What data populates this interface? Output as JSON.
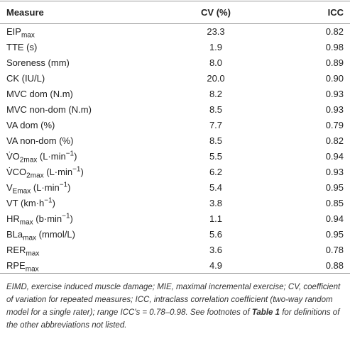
{
  "table": {
    "header": [
      "Measure",
      "CV (%)",
      "ICC"
    ],
    "rows": [
      {
        "measure": [
          {
            "text": "EIP"
          },
          {
            "sub": "max"
          }
        ],
        "cv": "23.3",
        "icc": "0.82"
      },
      {
        "measure": [
          {
            "text": "TTE (s)"
          }
        ],
        "cv": "1.9",
        "icc": "0.98"
      },
      {
        "measure": [
          {
            "text": "Soreness (mm)"
          }
        ],
        "cv": "8.0",
        "icc": "0.89"
      },
      {
        "measure": [
          {
            "text": "CK (IU/L)"
          }
        ],
        "cv": "20.0",
        "icc": "0.90"
      },
      {
        "measure": [
          {
            "text": "MVC dom (N.m)"
          }
        ],
        "cv": "8.2",
        "icc": "0.93"
      },
      {
        "measure": [
          {
            "text": "MVC non-dom (N.m)"
          }
        ],
        "cv": "8.5",
        "icc": "0.93"
      },
      {
        "measure": [
          {
            "text": "VA dom (%)"
          }
        ],
        "cv": "7.7",
        "icc": "0.79"
      },
      {
        "measure": [
          {
            "text": "VA non-dom (%)"
          }
        ],
        "cv": "8.5",
        "icc": "0.82"
      },
      {
        "measure": [
          {
            "text": "V̇O"
          },
          {
            "sub": "2max"
          },
          {
            "text": " (L·min"
          },
          {
            "sup": "−1"
          },
          {
            "text": ")"
          }
        ],
        "cv": "5.5",
        "icc": "0.94"
      },
      {
        "measure": [
          {
            "text": "V̇CO"
          },
          {
            "sub": "2max"
          },
          {
            "text": " (L·min"
          },
          {
            "sup": "−1"
          },
          {
            "text": ")"
          }
        ],
        "cv": "6.2",
        "icc": "0.93"
      },
      {
        "measure": [
          {
            "text": "V"
          },
          {
            "sub": "Emax"
          },
          {
            "text": " (L·min"
          },
          {
            "sup": "−1"
          },
          {
            "text": ")"
          }
        ],
        "cv": "5.4",
        "icc": "0.95"
      },
      {
        "measure": [
          {
            "text": "VT (km·h"
          },
          {
            "sup": "−1"
          },
          {
            "text": ")"
          }
        ],
        "cv": "3.8",
        "icc": "0.85"
      },
      {
        "measure": [
          {
            "text": "HR"
          },
          {
            "sub": "max"
          },
          {
            "text": " (b·min"
          },
          {
            "sup": "−1"
          },
          {
            "text": ")"
          }
        ],
        "cv": "1.1",
        "icc": "0.94"
      },
      {
        "measure": [
          {
            "text": "BLa"
          },
          {
            "sub": "max"
          },
          {
            "text": " (mmol/L)"
          }
        ],
        "cv": "5.6",
        "icc": "0.95"
      },
      {
        "measure": [
          {
            "text": "RER"
          },
          {
            "sub": "max"
          }
        ],
        "cv": "3.6",
        "icc": "0.78"
      },
      {
        "measure": [
          {
            "text": "RPE"
          },
          {
            "sub": "max"
          }
        ],
        "cv": "4.9",
        "icc": "0.88"
      }
    ]
  },
  "footnote": [
    {
      "text": "EIMD, exercise induced muscle damage; MIE, maximal incremental exercise; CV, coefficient of variation for repeated measures; ICC, intraclass correlation coefficient (two-way random model for a single rater); range ICC's = 0.78–0.98. See footnotes of "
    },
    {
      "bold": "Table 1"
    },
    {
      "text": " for definitions of the other abbreviations not listed."
    }
  ]
}
